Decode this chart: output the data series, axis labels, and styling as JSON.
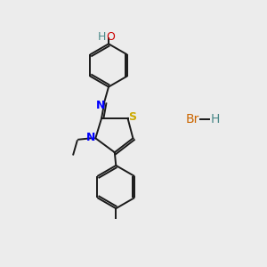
{
  "background_color": "#ececec",
  "figsize": [
    3.0,
    3.0
  ],
  "dpi": 100,
  "atom_colors": {
    "C": "#1a1a1a",
    "N": "#0000ff",
    "S": "#ccaa00",
    "O": "#cc0000",
    "H_teal": "#4a8888",
    "Br": "#cc6600"
  },
  "bond_color": "#1a1a1a",
  "bond_lw": 1.4,
  "font_size": 9
}
